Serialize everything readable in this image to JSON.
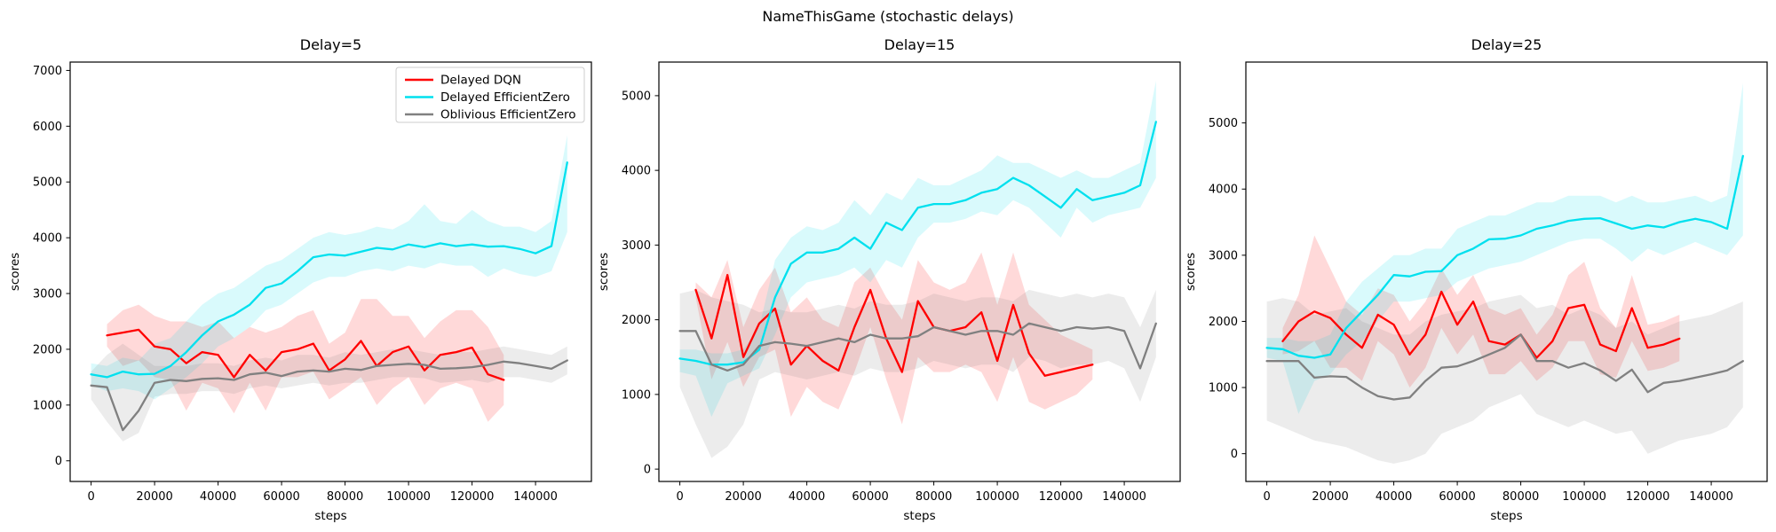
{
  "figure": {
    "title": "NameThisGame (stochastic delays)"
  },
  "colors": {
    "red": "#ff0000",
    "cyan": "#00e0ee",
    "gray": "#808080",
    "band_opacity": 0.15,
    "spine": "#000000",
    "legend_border": "#cccccc"
  },
  "legend": {
    "entries": [
      "Delayed DQN",
      "Delayed EfficientZero",
      "Oblivious EfficientZero"
    ]
  },
  "steps_x": {
    "full": [
      0,
      5000,
      10000,
      15000,
      20000,
      25000,
      30000,
      35000,
      40000,
      45000,
      50000,
      55000,
      60000,
      65000,
      70000,
      75000,
      80000,
      85000,
      90000,
      95000,
      100000,
      105000,
      110000,
      115000,
      120000,
      125000,
      130000,
      135000,
      140000,
      145000,
      150000
    ],
    "dqn": [
      5000,
      10000,
      15000,
      20000,
      25000,
      30000,
      35000,
      40000,
      45000,
      50000,
      55000,
      60000,
      65000,
      70000,
      75000,
      80000,
      85000,
      90000,
      95000,
      100000,
      105000,
      110000,
      115000,
      120000,
      125000,
      130000
    ]
  },
  "chart_data": [
    {
      "type": "line",
      "title": "Delay=5",
      "xlabel": "steps",
      "ylabel": "scores",
      "xlim": [
        -6600,
        157600
      ],
      "ylim": [
        -370,
        7150
      ],
      "xticks": [
        0,
        20000,
        40000,
        60000,
        80000,
        100000,
        120000,
        140000
      ],
      "yticks": [
        0,
        1000,
        2000,
        3000,
        4000,
        5000,
        6000,
        7000
      ],
      "grid": false,
      "legend": true,
      "series": [
        {
          "name": "Delayed DQN",
          "color": "#ff0000",
          "x": "dqn",
          "y": [
            2250,
            2300,
            2350,
            2050,
            2000,
            1750,
            1950,
            1900,
            1500,
            1900,
            1620,
            1950,
            2000,
            2100,
            1620,
            1820,
            2150,
            1700,
            1950,
            2050,
            1620,
            1900,
            1950,
            2030,
            1550,
            1450
          ],
          "lo": [
            2050,
            1700,
            1800,
            1500,
            1450,
            900,
            1400,
            1300,
            850,
            1400,
            900,
            1500,
            1500,
            1600,
            1100,
            1300,
            1500,
            1000,
            1300,
            1500,
            1000,
            1300,
            1400,
            1300,
            700,
            1000
          ],
          "hi": [
            2450,
            2700,
            2800,
            2600,
            2500,
            2500,
            2400,
            2500,
            2200,
            2400,
            2300,
            2400,
            2600,
            2700,
            2100,
            2300,
            2900,
            2900,
            2600,
            2600,
            2200,
            2500,
            2700,
            2700,
            2400,
            1900
          ]
        },
        {
          "name": "Delayed EfficientZero",
          "color": "#00e0ee",
          "x": "full",
          "y": [
            1550,
            1500,
            1600,
            1550,
            1560,
            1700,
            1950,
            2250,
            2500,
            2620,
            2800,
            3100,
            3180,
            3400,
            3650,
            3700,
            3680,
            3750,
            3820,
            3790,
            3880,
            3830,
            3900,
            3850,
            3880,
            3840,
            3850,
            3800,
            3720,
            3850,
            5350
          ],
          "lo": [
            1350,
            1250,
            1300,
            1250,
            1100,
            1300,
            1500,
            1750,
            2050,
            2200,
            2400,
            2700,
            2800,
            3000,
            3200,
            3300,
            3300,
            3400,
            3450,
            3400,
            3500,
            3450,
            3550,
            3500,
            3500,
            3300,
            3450,
            3350,
            3300,
            3400,
            4100
          ],
          "hi": [
            1750,
            1700,
            1850,
            1800,
            2100,
            2200,
            2500,
            2800,
            3000,
            3100,
            3300,
            3500,
            3600,
            3800,
            4000,
            4100,
            4050,
            4100,
            4200,
            4150,
            4300,
            4600,
            4300,
            4250,
            4500,
            4300,
            4200,
            4200,
            4100,
            4300,
            5840
          ]
        },
        {
          "name": "Oblivious EfficientZero",
          "color": "#808080",
          "x": "full",
          "y": [
            1350,
            1320,
            550,
            900,
            1400,
            1450,
            1430,
            1470,
            1480,
            1450,
            1550,
            1580,
            1520,
            1600,
            1620,
            1600,
            1650,
            1630,
            1700,
            1720,
            1740,
            1720,
            1650,
            1660,
            1680,
            1720,
            1780,
            1750,
            1700,
            1650,
            1800
          ],
          "lo": [
            1100,
            700,
            350,
            500,
            1150,
            1200,
            1200,
            1250,
            1250,
            1200,
            1300,
            1350,
            1300,
            1350,
            1400,
            1350,
            1400,
            1400,
            1450,
            1500,
            1500,
            1480,
            1400,
            1420,
            1450,
            1400,
            1500,
            1500,
            1450,
            1400,
            1550
          ],
          "hi": [
            1600,
            1900,
            2100,
            1900,
            1700,
            1700,
            1700,
            1750,
            1750,
            1700,
            1800,
            1850,
            1800,
            1900,
            1900,
            1850,
            1950,
            1900,
            1950,
            2000,
            2000,
            1950,
            1900,
            1950,
            1950,
            2000,
            2050,
            2000,
            1950,
            1900,
            2050
          ]
        }
      ]
    },
    {
      "type": "line",
      "title": "Delay=15",
      "xlabel": "steps",
      "ylabel": "scores",
      "xlim": [
        -6600,
        157600
      ],
      "ylim": [
        -165,
        5450
      ],
      "xticks": [
        0,
        20000,
        40000,
        60000,
        80000,
        100000,
        120000,
        140000
      ],
      "yticks": [
        0,
        1000,
        2000,
        3000,
        4000,
        5000
      ],
      "grid": false,
      "legend": false,
      "series": [
        {
          "name": "Delayed DQN",
          "color": "#ff0000",
          "x": "dqn",
          "y": [
            2400,
            1750,
            2600,
            1500,
            1950,
            2150,
            1400,
            1650,
            1450,
            1320,
            1900,
            2400,
            1750,
            1300,
            2250,
            1900,
            1850,
            1900,
            2100,
            1450,
            2200,
            1550,
            1250,
            1300,
            1350,
            1400
          ],
          "lo": [
            2300,
            1200,
            1700,
            1100,
            1500,
            1600,
            700,
            1100,
            900,
            800,
            1300,
            1900,
            1200,
            600,
            1500,
            1300,
            1300,
            1400,
            1300,
            900,
            1500,
            900,
            800,
            900,
            1000,
            1200
          ],
          "hi": [
            2500,
            2300,
            2800,
            1900,
            2400,
            2700,
            2100,
            2300,
            2000,
            1900,
            2500,
            2700,
            2300,
            2000,
            2800,
            2500,
            2400,
            2500,
            2900,
            2200,
            2900,
            2200,
            2000,
            1800,
            1700,
            1600
          ]
        },
        {
          "name": "Delayed EfficientZero",
          "color": "#00e0ee",
          "x": "full",
          "y": [
            1480,
            1450,
            1400,
            1400,
            1430,
            1600,
            2300,
            2750,
            2900,
            2900,
            2950,
            3100,
            2950,
            3300,
            3200,
            3500,
            3550,
            3550,
            3600,
            3700,
            3750,
            3900,
            3800,
            3650,
            3500,
            3750,
            3600,
            3650,
            3700,
            3800,
            4650
          ],
          "lo": [
            1300,
            1250,
            700,
            1150,
            1250,
            1350,
            1800,
            2300,
            2500,
            2550,
            2600,
            2700,
            2500,
            2800,
            2700,
            3100,
            3300,
            3300,
            3350,
            3450,
            3400,
            3600,
            3500,
            3300,
            3100,
            3500,
            3300,
            3400,
            3450,
            3500,
            3900
          ],
          "hi": [
            1600,
            1600,
            1550,
            1550,
            1600,
            1900,
            2800,
            3100,
            3250,
            3200,
            3300,
            3600,
            3400,
            3700,
            3600,
            3900,
            3800,
            3800,
            3900,
            4000,
            4200,
            4100,
            4100,
            4000,
            3900,
            4000,
            3900,
            3900,
            4000,
            4100,
            5200
          ]
        },
        {
          "name": "Oblivious EfficientZero",
          "color": "#808080",
          "x": "full",
          "y": [
            1850,
            1850,
            1400,
            1320,
            1400,
            1650,
            1700,
            1680,
            1650,
            1700,
            1750,
            1700,
            1800,
            1750,
            1750,
            1780,
            1900,
            1850,
            1800,
            1850,
            1850,
            1800,
            1950,
            1900,
            1850,
            1900,
            1880,
            1900,
            1850,
            1350,
            1950
          ],
          "lo": [
            1100,
            600,
            150,
            300,
            600,
            1200,
            1300,
            1250,
            1200,
            1250,
            1300,
            1250,
            1350,
            1300,
            1300,
            1350,
            1450,
            1400,
            1350,
            1400,
            1400,
            1300,
            1500,
            1450,
            1350,
            1400,
            1400,
            1450,
            1350,
            900,
            1500
          ],
          "hi": [
            2350,
            2400,
            2300,
            2250,
            2200,
            2100,
            2150,
            2100,
            2100,
            2150,
            2200,
            2150,
            2250,
            2200,
            2200,
            2250,
            2350,
            2300,
            2250,
            2300,
            2300,
            2250,
            2400,
            2350,
            2300,
            2350,
            2300,
            2350,
            2300,
            1900,
            2400
          ]
        }
      ]
    },
    {
      "type": "line",
      "title": "Delay=25",
      "xlabel": "steps",
      "ylabel": "scores",
      "xlim": [
        -6600,
        157600
      ],
      "ylim": [
        -420,
        5920
      ],
      "xticks": [
        0,
        20000,
        40000,
        60000,
        80000,
        100000,
        120000,
        140000
      ],
      "yticks": [
        0,
        1000,
        2000,
        3000,
        4000,
        5000
      ],
      "grid": false,
      "legend": false,
      "series": [
        {
          "name": "Delayed DQN",
          "color": "#ff0000",
          "x": "dqn",
          "y": [
            1700,
            2000,
            2150,
            2050,
            1800,
            1600,
            2100,
            1950,
            1500,
            1800,
            2450,
            1950,
            2300,
            1700,
            1650,
            1800,
            1450,
            1700,
            2200,
            2250,
            1650,
            1550,
            2200,
            1600,
            1650,
            1740
          ],
          "lo": [
            1500,
            1550,
            1700,
            1300,
            1300,
            1100,
            1700,
            1500,
            1000,
            1300,
            1900,
            1500,
            1800,
            1200,
            1200,
            1400,
            1100,
            1300,
            1700,
            1700,
            1200,
            1150,
            1700,
            1250,
            1300,
            1400
          ],
          "hi": [
            1900,
            2400,
            3300,
            2800,
            2300,
            2100,
            2500,
            2400,
            2000,
            2300,
            2800,
            2400,
            2700,
            2200,
            2100,
            2200,
            1800,
            2100,
            2700,
            2900,
            2200,
            1900,
            2700,
            1950,
            2000,
            2100
          ]
        },
        {
          "name": "Delayed EfficientZero",
          "color": "#00e0ee",
          "x": "full",
          "y": [
            1600,
            1580,
            1480,
            1450,
            1500,
            1900,
            2150,
            2400,
            2700,
            2680,
            2750,
            2760,
            3000,
            3100,
            3240,
            3250,
            3300,
            3400,
            3450,
            3520,
            3550,
            3560,
            3480,
            3400,
            3450,
            3420,
            3500,
            3550,
            3500,
            3400,
            4500
          ],
          "lo": [
            1450,
            1400,
            600,
            1100,
            1200,
            1500,
            1700,
            2000,
            2300,
            2300,
            2350,
            2400,
            2600,
            2700,
            2800,
            2850,
            2900,
            3000,
            3100,
            3200,
            3250,
            3250,
            3100,
            2900,
            3100,
            3000,
            3100,
            3200,
            3100,
            3000,
            3300
          ],
          "hi": [
            1750,
            1750,
            1700,
            1700,
            1800,
            2300,
            2600,
            2800,
            3000,
            3000,
            3100,
            3100,
            3400,
            3500,
            3600,
            3600,
            3700,
            3800,
            3800,
            3900,
            3900,
            3900,
            3800,
            3900,
            3800,
            3800,
            3850,
            3900,
            3800,
            3900,
            5600
          ]
        },
        {
          "name": "Oblivious EfficientZero",
          "color": "#808080",
          "x": "full",
          "y": [
            1400,
            1400,
            1400,
            1150,
            1170,
            1160,
            1000,
            870,
            820,
            850,
            1100,
            1300,
            1320,
            1400,
            1500,
            1600,
            1800,
            1400,
            1400,
            1300,
            1370,
            1260,
            1100,
            1270,
            930,
            1070,
            1100,
            1150,
            1200,
            1260,
            1400
          ],
          "lo": [
            500,
            400,
            300,
            200,
            150,
            100,
            0,
            -100,
            -150,
            -100,
            0,
            300,
            400,
            500,
            700,
            800,
            900,
            600,
            500,
            400,
            500,
            400,
            300,
            350,
            0,
            100,
            200,
            250,
            300,
            400,
            700
          ],
          "hi": [
            2300,
            2350,
            2300,
            2100,
            2150,
            2200,
            2000,
            1900,
            1800,
            1800,
            2000,
            2100,
            2150,
            2200,
            2300,
            2350,
            2400,
            2200,
            2250,
            2100,
            2200,
            2100,
            1900,
            2000,
            1800,
            1900,
            2000,
            2050,
            2100,
            2200,
            2300
          ]
        }
      ]
    }
  ]
}
